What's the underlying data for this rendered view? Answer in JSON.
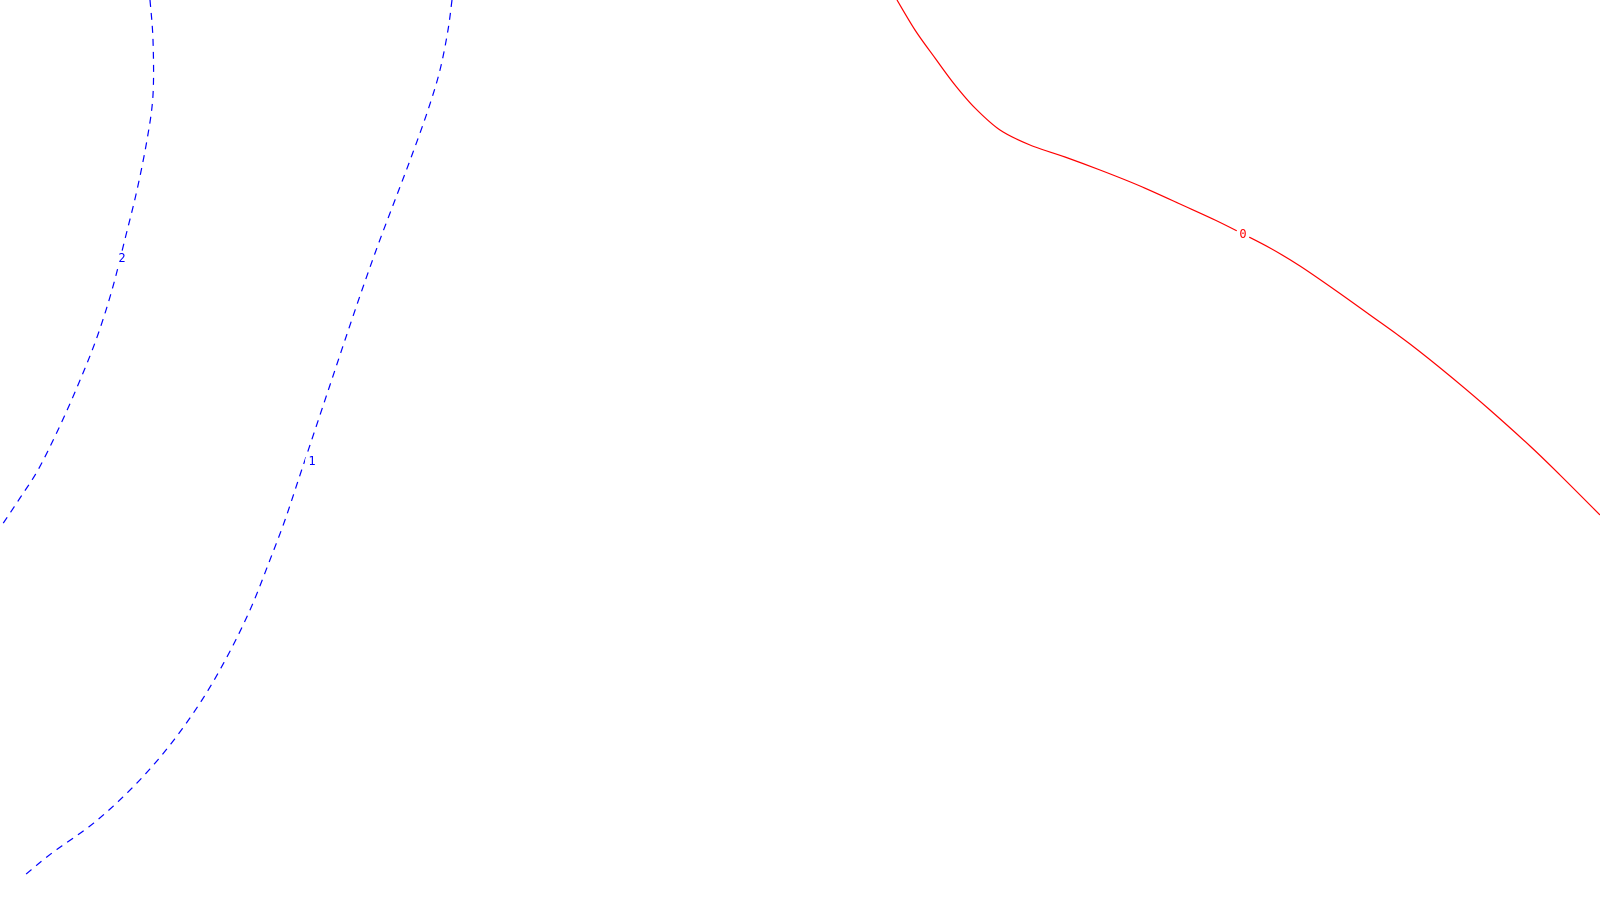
{
  "chart_data": {
    "type": "contour",
    "title": "",
    "xlabel": "",
    "ylabel": "",
    "grid": false,
    "legend": "none",
    "contours": [
      {
        "level": "2",
        "color": "#0000ff",
        "style": "dashed",
        "path": [
          [
            150,
            0
          ],
          [
            153,
            40
          ],
          [
            153,
            95
          ],
          [
            147,
            140
          ],
          [
            137,
            190
          ],
          [
            126,
            235
          ],
          [
            112,
            290
          ],
          [
            96,
            340
          ],
          [
            78,
            385
          ],
          [
            58,
            430
          ],
          [
            38,
            470
          ],
          [
            20,
            498
          ],
          [
            0,
            528
          ]
        ],
        "label": {
          "text": "2",
          "at": [
            122,
            258
          ],
          "angle": -78
        }
      },
      {
        "level": "1",
        "color": "#0000ff",
        "style": "dashed",
        "path": [
          [
            452,
            0
          ],
          [
            448,
            30
          ],
          [
            440,
            70
          ],
          [
            428,
            110
          ],
          [
            412,
            155
          ],
          [
            395,
            200
          ],
          [
            378,
            245
          ],
          [
            362,
            290
          ],
          [
            345,
            340
          ],
          [
            330,
            385
          ],
          [
            315,
            430
          ],
          [
            300,
            475
          ],
          [
            285,
            520
          ],
          [
            268,
            565
          ],
          [
            250,
            610
          ],
          [
            228,
            655
          ],
          [
            202,
            700
          ],
          [
            170,
            745
          ],
          [
            135,
            785
          ],
          [
            95,
            822
          ],
          [
            52,
            853
          ],
          [
            25,
            875
          ]
        ],
        "label": {
          "text": "1",
          "at": [
            312,
            461
          ],
          "angle": -72
        }
      },
      {
        "level": "0",
        "color": "#ff0000",
        "style": "solid",
        "path": [
          [
            897,
            0
          ],
          [
            915,
            30
          ],
          [
            935,
            58
          ],
          [
            955,
            85
          ],
          [
            975,
            108
          ],
          [
            1000,
            130
          ],
          [
            1030,
            145
          ],
          [
            1065,
            157
          ],
          [
            1100,
            170
          ],
          [
            1140,
            186
          ],
          [
            1180,
            204
          ],
          [
            1215,
            220
          ],
          [
            1243,
            234
          ],
          [
            1270,
            248
          ],
          [
            1300,
            266
          ],
          [
            1335,
            290
          ],
          [
            1370,
            315
          ],
          [
            1410,
            344
          ],
          [
            1450,
            376
          ],
          [
            1490,
            410
          ],
          [
            1530,
            446
          ],
          [
            1560,
            475
          ],
          [
            1600,
            515
          ]
        ],
        "label": {
          "text": "0",
          "at": [
            1243,
            234
          ],
          "angle": 25
        }
      }
    ]
  }
}
